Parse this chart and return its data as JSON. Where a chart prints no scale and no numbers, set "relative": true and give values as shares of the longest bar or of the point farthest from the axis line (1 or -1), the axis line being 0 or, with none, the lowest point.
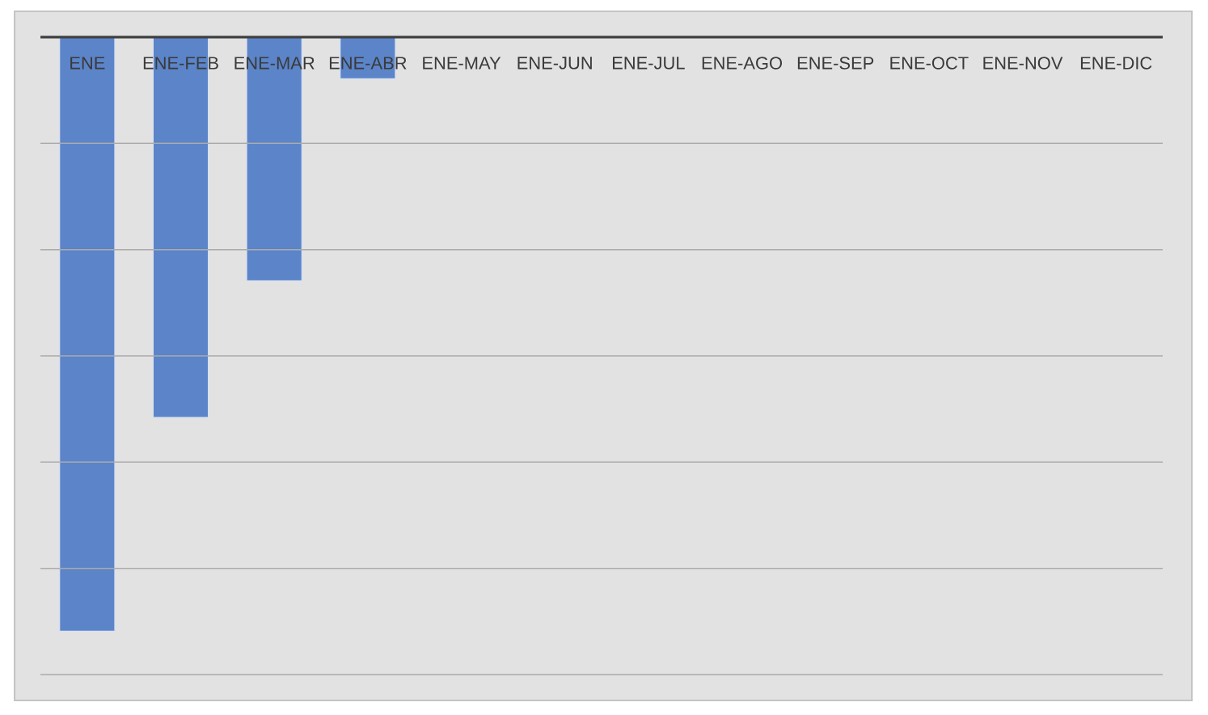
{
  "chart_data": {
    "type": "bar",
    "relative": true,
    "categories": [
      "ENE",
      "ENE-FEB",
      "ENE-MAR",
      "ENE-ABR",
      "ENE-MAY",
      "ENE-JUN",
      "ENE-JUL",
      "ENE-AGO",
      "ENE-SEP",
      "ENE-OCT",
      "ENE-NOV",
      "ENE-DIC"
    ],
    "values": [
      -1,
      -0.64,
      -0.41,
      -0.07,
      null,
      null,
      null,
      null,
      null,
      null,
      null,
      null
    ],
    "color": "#5b84c9",
    "grid": "y"
  }
}
